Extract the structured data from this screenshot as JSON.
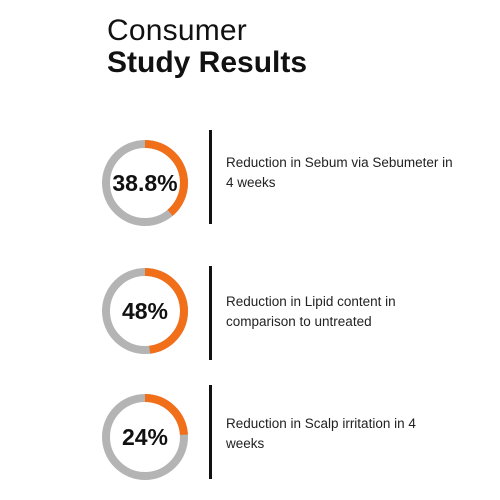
{
  "title": {
    "line1": "Consumer",
    "line2": "Study Results"
  },
  "colors": {
    "accent": "#f26f1a",
    "track": "#b4b4b4",
    "text": "#111111"
  },
  "chart_data": {
    "type": "pie",
    "title": "Consumer Study Results",
    "series": [
      {
        "label": "38.8%",
        "value": 38.8,
        "description": "Reduction in Sebum via Sebumeter in 4 weeks"
      },
      {
        "label": "48%",
        "value": 48,
        "description": "Reduction in Lipid content in comparison to untreated"
      },
      {
        "label": "24%",
        "value": 24,
        "description": "Reduction in Scalp irritation in 4 weeks"
      }
    ]
  }
}
